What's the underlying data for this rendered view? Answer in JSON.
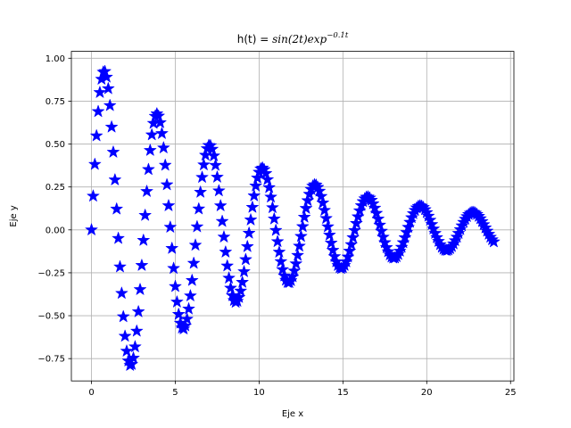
{
  "chart_data": {
    "type": "scatter",
    "title": {
      "prefix": "h(t) = ",
      "math": "sin(2t)exp",
      "exponent": "−0.1t"
    },
    "xlabel": "Eje x",
    "ylabel": "Eje y",
    "xlim": [
      -1.2,
      25.2
    ],
    "ylim": [
      -0.88,
      1.04
    ],
    "grid": true,
    "x_ticks": [
      0,
      5,
      10,
      15,
      20,
      25
    ],
    "x_tick_labels": [
      "0",
      "5",
      "10",
      "15",
      "20",
      "25"
    ],
    "y_ticks": [
      -0.75,
      -0.5,
      -0.25,
      0.0,
      0.25,
      0.5,
      0.75,
      1.0
    ],
    "y_tick_labels": [
      "−0.75",
      "−0.50",
      "−0.25",
      "0.00",
      "0.25",
      "0.50",
      "0.75",
      "1.00"
    ],
    "series": [
      {
        "name": "h(t)",
        "function": "sin(2t)*exp(-0.1t)",
        "marker": "star",
        "color": "#0000ff",
        "t_start": 0.0,
        "t_end": 24.0,
        "t_step": 0.1
      }
    ]
  }
}
